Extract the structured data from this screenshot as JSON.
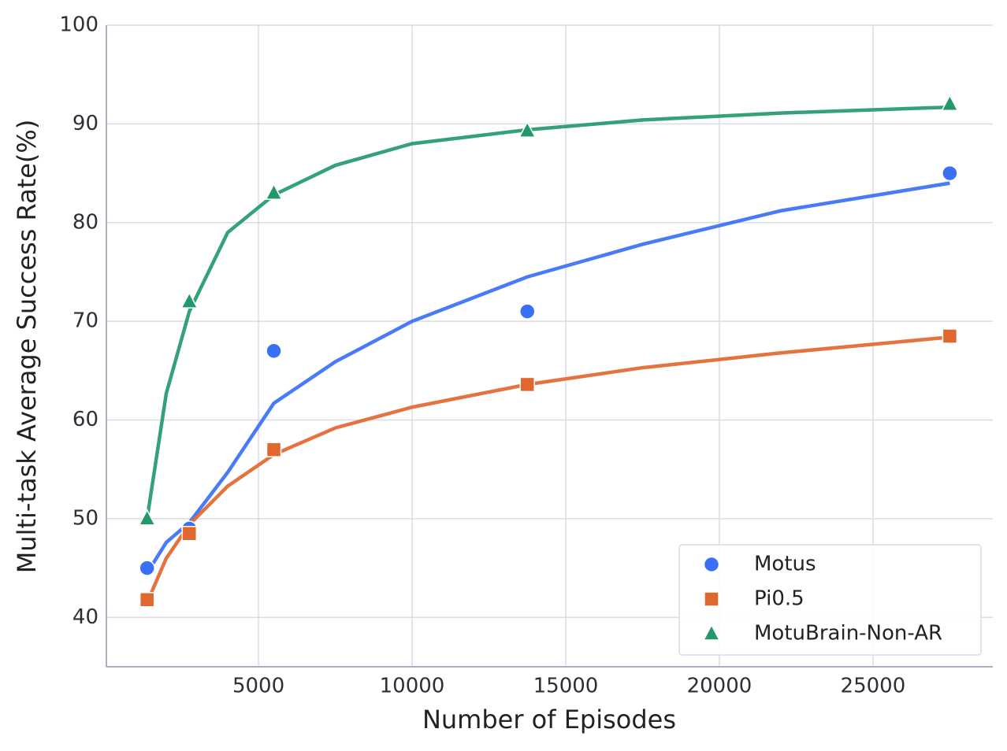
{
  "chart_data": {
    "type": "scatter",
    "x_label": "Number of Episodes",
    "y_label": "Multi-task Average Success Rate(%)",
    "x": [
      1375,
      2750,
      5500,
      13750,
      27500
    ],
    "series": [
      {
        "name": "Motus",
        "color": "#3a6ff7",
        "marker": "circle",
        "values": [
          45,
          49,
          67,
          71,
          85
        ],
        "fit_values": [
          44.5,
          47.6,
          49.6,
          54.7,
          61.7,
          65.9,
          70.0,
          74.5,
          77.8,
          81.2,
          84.0
        ]
      },
      {
        "name": "Pi0.5",
        "color": "#e2672f",
        "marker": "square",
        "values": [
          41.8,
          48.5,
          57,
          63.6,
          68.5
        ],
        "fit_values": [
          41.5,
          46.0,
          49.4,
          53.3,
          56.5,
          59.2,
          61.3,
          63.6,
          65.3,
          66.8,
          68.4
        ]
      },
      {
        "name": "MotuBrain-Non-AR",
        "color": "#23996b",
        "marker": "triangle",
        "values": [
          50,
          72,
          83,
          89.3,
          92
        ],
        "fit_values": [
          50.0,
          62.7,
          71.0,
          79.0,
          82.8,
          85.8,
          88.0,
          89.4,
          90.4,
          91.1,
          91.7
        ]
      }
    ],
    "fit_x": [
      1375,
      2000,
      2750,
      4000,
      5500,
      7500,
      10000,
      13750,
      17500,
      22000,
      27500
    ],
    "xlim": [
      50,
      28900
    ],
    "xticks": [
      5000,
      10000,
      15000,
      20000,
      25000
    ],
    "ylim": [
      35,
      100
    ],
    "yticks": [
      40,
      50,
      60,
      70,
      80,
      90,
      100
    ],
    "grid": true,
    "legend": "lower right"
  }
}
